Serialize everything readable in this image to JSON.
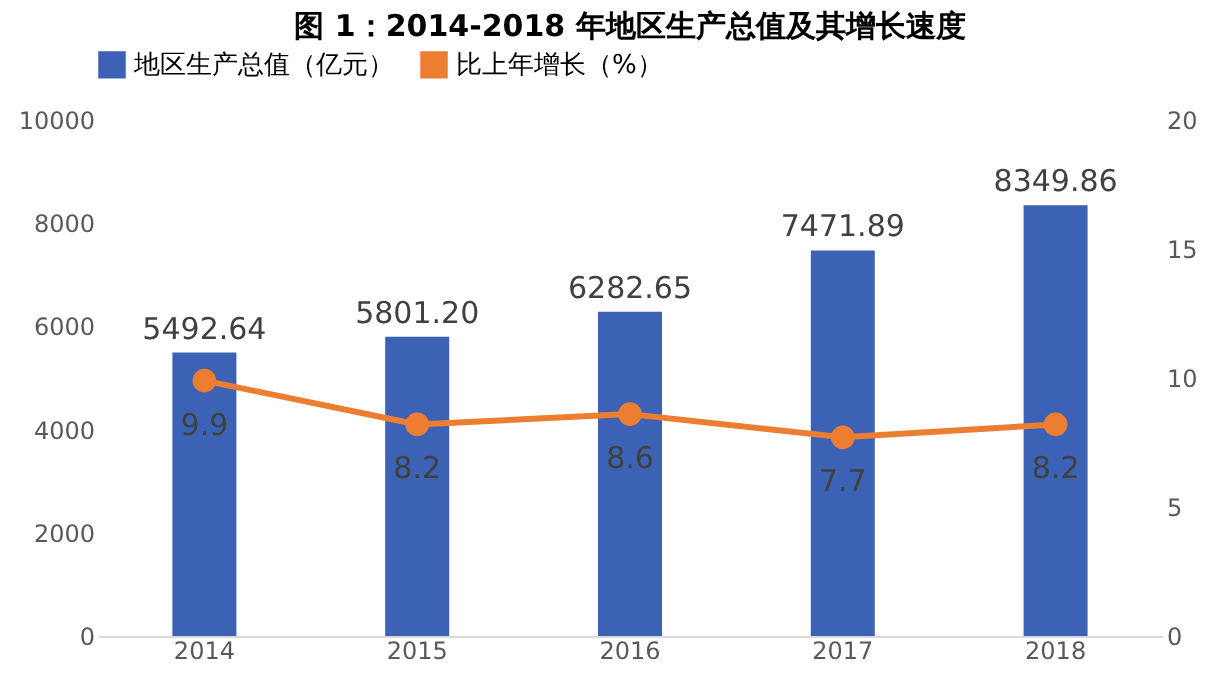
{
  "chart_data": {
    "type": "bar",
    "title": "图 1：2014-2018 年地区生产总值及其增长速度",
    "categories": [
      "2014",
      "2015",
      "2016",
      "2017",
      "2018"
    ],
    "series": [
      {
        "name": "地区生产总值（亿元）",
        "color": "#3b62b4",
        "values": [
          5492.64,
          5801.2,
          6282.65,
          7471.89,
          8349.86
        ],
        "value_labels": [
          "5492.64",
          "5801.20",
          "6282.65",
          "7471.89",
          "8349.86"
        ]
      },
      {
        "name": "比上年增长（%）",
        "type": "line",
        "axis": "y2",
        "color": "#ed7d31",
        "values": [
          9.9,
          8.2,
          8.6,
          7.7,
          8.2
        ],
        "value_labels": [
          "9.9",
          "8.2",
          "8.6",
          "7.7",
          "8.2"
        ]
      }
    ],
    "ylim": [
      0,
      10000
    ],
    "yticks": [
      0,
      2000,
      4000,
      6000,
      8000,
      10000
    ],
    "y2lim": [
      0,
      20
    ],
    "y2ticks": [
      0,
      5,
      10,
      15,
      20
    ],
    "data_labels": true,
    "legend": "top",
    "grid": false,
    "marker": "circle",
    "line_style": "solid"
  }
}
